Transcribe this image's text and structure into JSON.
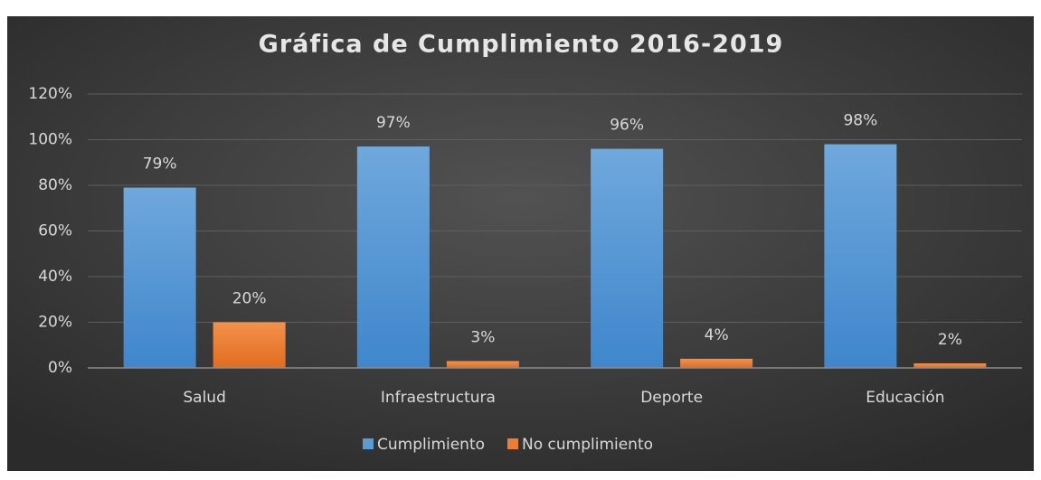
{
  "chart_data": {
    "type": "bar",
    "title": "Gráfica de Cumplimiento 2016-2019",
    "categories": [
      "Salud",
      "Infraestructura",
      "Deporte",
      "Educación"
    ],
    "series": [
      {
        "name": "Cumplimiento",
        "color": "#5b9bd5",
        "values": [
          79,
          97,
          96,
          98
        ],
        "value_labels": [
          "79%",
          "97%",
          "96%",
          "98%"
        ]
      },
      {
        "name": "No cumplimiento",
        "color": "#ed7d31",
        "values": [
          20,
          3,
          4,
          2
        ],
        "value_labels": [
          "20%",
          "3%",
          "4%",
          "2%"
        ]
      }
    ],
    "ylim": [
      0,
      120
    ],
    "yticks": [
      {
        "value": 0,
        "label": "0%"
      },
      {
        "value": 20,
        "label": "20%"
      },
      {
        "value": 40,
        "label": "40%"
      },
      {
        "value": 60,
        "label": "60%"
      },
      {
        "value": 80,
        "label": "80%"
      },
      {
        "value": 100,
        "label": "100%"
      },
      {
        "value": 120,
        "label": "120%"
      }
    ],
    "grid": true,
    "legend": "bottom"
  }
}
